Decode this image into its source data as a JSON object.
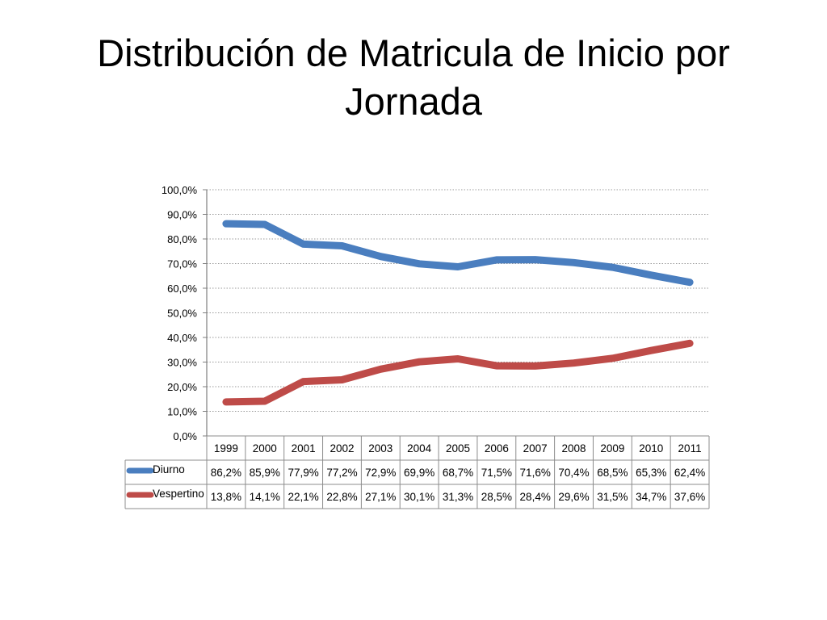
{
  "title": "Distribución de Matricula de Inicio por Jornada",
  "chart_data": {
    "type": "line",
    "title": "",
    "xlabel": "",
    "ylabel": "",
    "categories": [
      "1999",
      "2000",
      "2001",
      "2002",
      "2003",
      "2004",
      "2005",
      "2006",
      "2007",
      "2008",
      "2009",
      "2010",
      "2011"
    ],
    "ylim": [
      0,
      100
    ],
    "yticks": [
      0,
      10,
      20,
      30,
      40,
      50,
      60,
      70,
      80,
      90,
      100
    ],
    "ytick_labels": [
      "0,0%",
      "10,0%",
      "20,0%",
      "30,0%",
      "40,0%",
      "50,0%",
      "60,0%",
      "70,0%",
      "80,0%",
      "90,0%",
      "100,0%"
    ],
    "grid": true,
    "legend": "data-table",
    "series": [
      {
        "name": "Diurno",
        "color": "#4a7ebf",
        "values": [
          86.2,
          85.9,
          77.9,
          77.2,
          72.9,
          69.9,
          68.7,
          71.5,
          71.6,
          70.4,
          68.5,
          65.3,
          62.4
        ],
        "labels": [
          "86,2%",
          "85,9%",
          "77,9%",
          "77,2%",
          "72,9%",
          "69,9%",
          "68,7%",
          "71,5%",
          "71,6%",
          "70,4%",
          "68,5%",
          "65,3%",
          "62,4%"
        ]
      },
      {
        "name": "Vespertino",
        "color": "#be4b48",
        "values": [
          13.8,
          14.1,
          22.1,
          22.8,
          27.1,
          30.1,
          31.3,
          28.5,
          28.4,
          29.6,
          31.5,
          34.7,
          37.6
        ],
        "labels": [
          "13,8%",
          "14,1%",
          "22,1%",
          "22,8%",
          "27,1%",
          "30,1%",
          "31,3%",
          "28,5%",
          "28,4%",
          "29,6%",
          "31,5%",
          "34,7%",
          "37,6%"
        ]
      }
    ]
  }
}
